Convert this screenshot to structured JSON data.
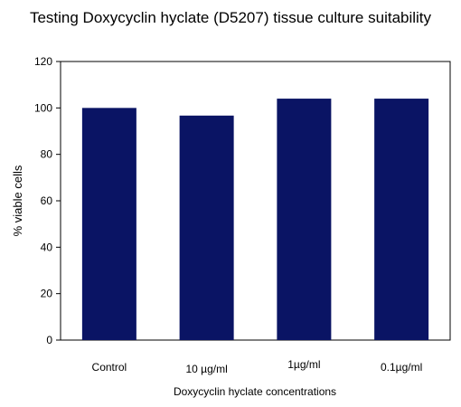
{
  "chart_data": {
    "type": "bar",
    "title": "Testing Doxycyclin hyclate (D5207) tissue culture suitability",
    "xlabel": "Doxycyclin hyclate concentrations",
    "ylabel": "% viable cells",
    "categories": [
      "Control",
      "10 µg/ml",
      "1µg/ml",
      "0.1µg/ml"
    ],
    "values": [
      100,
      96.7,
      104,
      104
    ],
    "ylim": [
      0,
      120
    ],
    "yticks": [
      "0",
      "20",
      "40",
      "60",
      "80",
      "100",
      "120"
    ],
    "grid": false,
    "legend": "none",
    "bar_color": "#0a1464"
  }
}
